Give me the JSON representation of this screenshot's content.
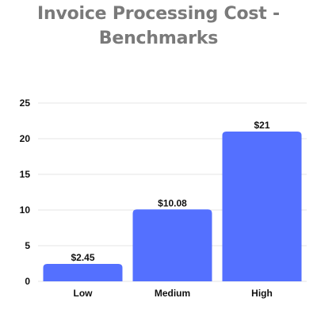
{
  "chart_data": {
    "type": "bar",
    "title_lines": [
      "Invoice Processing Cost -",
      "Benchmarks"
    ],
    "categories": [
      "Low",
      "Medium",
      "High"
    ],
    "values": [
      2.45,
      10.08,
      21
    ],
    "data_labels": [
      "$2.45",
      "$10.08",
      "$21"
    ],
    "xlabel": "",
    "ylabel": "",
    "ylim": [
      0,
      25
    ],
    "yticks": [
      0,
      5,
      10,
      15,
      20,
      25
    ],
    "grid": true,
    "legend": "none",
    "colors": {
      "bar": "#5470ff",
      "grid": "#e6e6e6",
      "title": "#7a7a7a",
      "text": "#111111"
    }
  }
}
